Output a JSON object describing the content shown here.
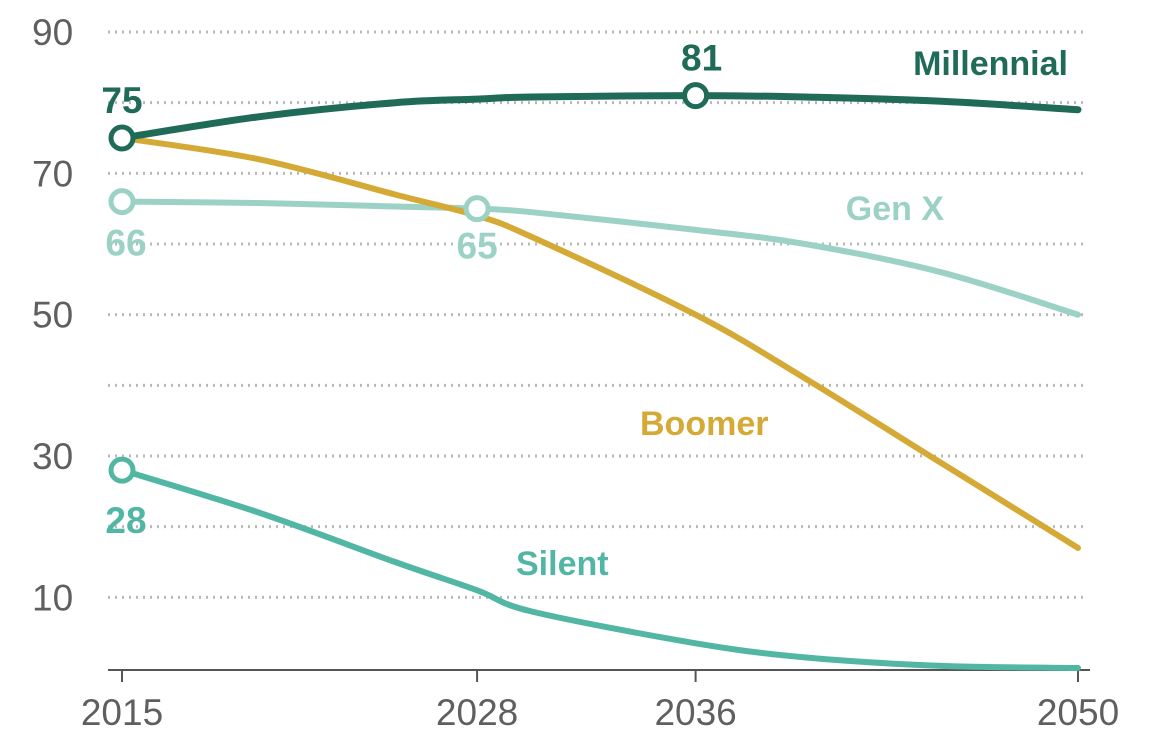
{
  "chart_data": {
    "type": "line",
    "title": "",
    "xlabel": "",
    "ylabel": "",
    "x": [
      2015,
      2020,
      2025,
      2028,
      2030,
      2036,
      2040,
      2045,
      2050
    ],
    "xticks": [
      "2015",
      "2028",
      "2036",
      "2050"
    ],
    "yticks": [
      "90",
      "70",
      "50",
      "30",
      "10"
    ],
    "ylim": [
      0,
      90
    ],
    "xlim": [
      2015,
      2050
    ],
    "grid": true,
    "series": [
      {
        "name": "Millennial",
        "color": "#1f6b58",
        "values": [
          75,
          78,
          80,
          80.5,
          80.8,
          81,
          80.8,
          80.2,
          79
        ]
      },
      {
        "name": "Boomer",
        "color": "#d4a935",
        "values": [
          75,
          72,
          67,
          64,
          61,
          50,
          41,
          29,
          17
        ]
      },
      {
        "name": "Gen X",
        "color": "#9bd2c5",
        "values": [
          66,
          65.8,
          65.3,
          65,
          64.5,
          62,
          60,
          56,
          50
        ]
      },
      {
        "name": "Silent",
        "color": "#52b6a4",
        "values": [
          28,
          22,
          15,
          11,
          8,
          3.5,
          1.5,
          0.3,
          0
        ]
      }
    ],
    "point_labels": [
      {
        "series": "Millennial",
        "x": 2015,
        "y": 75,
        "text": "75"
      },
      {
        "series": "Millennial",
        "x": 2036,
        "y": 81,
        "text": "81"
      },
      {
        "series": "Gen X",
        "x": 2015,
        "y": 66,
        "text": "66"
      },
      {
        "series": "Gen X",
        "x": 2028,
        "y": 65,
        "text": "65"
      },
      {
        "series": "Silent",
        "x": 2015,
        "y": 28,
        "text": "28"
      }
    ]
  }
}
